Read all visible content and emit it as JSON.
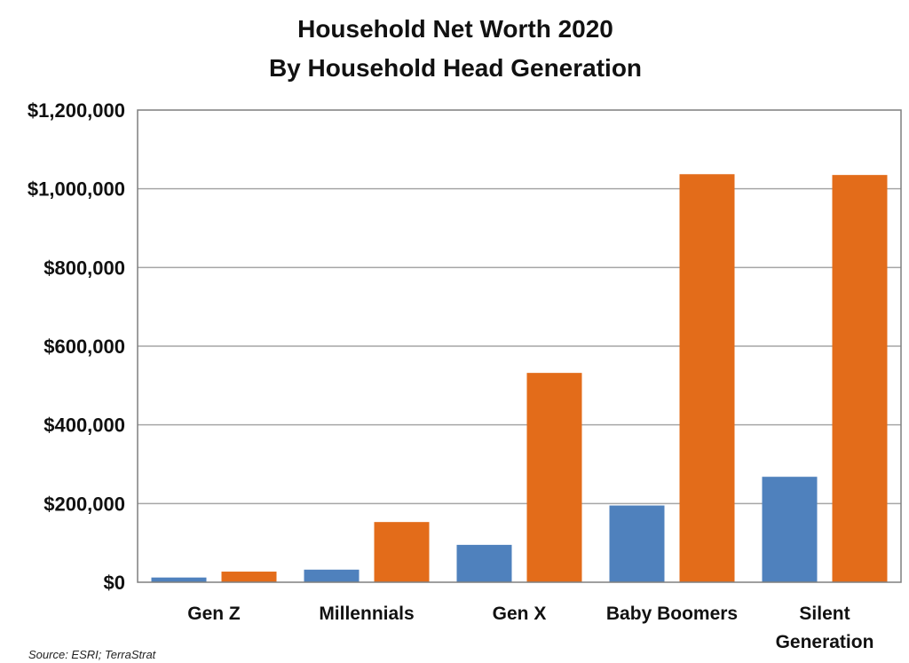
{
  "chart_data": {
    "type": "bar",
    "title": "Household Net Worth 2020",
    "subtitle": "By Household Head Generation",
    "source": "Source: ESRI; TerraStrat",
    "categories": [
      "Gen Z",
      "Millennials",
      "Gen X",
      "Baby Boomers",
      "Silent Generation"
    ],
    "category_lines": [
      [
        "Gen Z"
      ],
      [
        "Millennials"
      ],
      [
        "Gen X"
      ],
      [
        "Baby Boomers"
      ],
      [
        "Silent",
        "Generation"
      ]
    ],
    "series": [
      {
        "color": "#4f81bd",
        "values": [
          12000,
          32000,
          95000,
          195000,
          268000
        ]
      },
      {
        "color": "#e36c1a",
        "values": [
          27000,
          153000,
          532000,
          1037000,
          1035000
        ]
      }
    ],
    "ylim": [
      0,
      1200000
    ],
    "yticks": [
      0,
      200000,
      400000,
      600000,
      800000,
      1000000,
      1200000
    ],
    "ytick_labels": [
      "$0",
      "$200,000",
      "$400,000",
      "$600,000",
      "$800,000",
      "$1,000,000",
      "$1,200,000"
    ],
    "grid": true,
    "legend": "none"
  }
}
